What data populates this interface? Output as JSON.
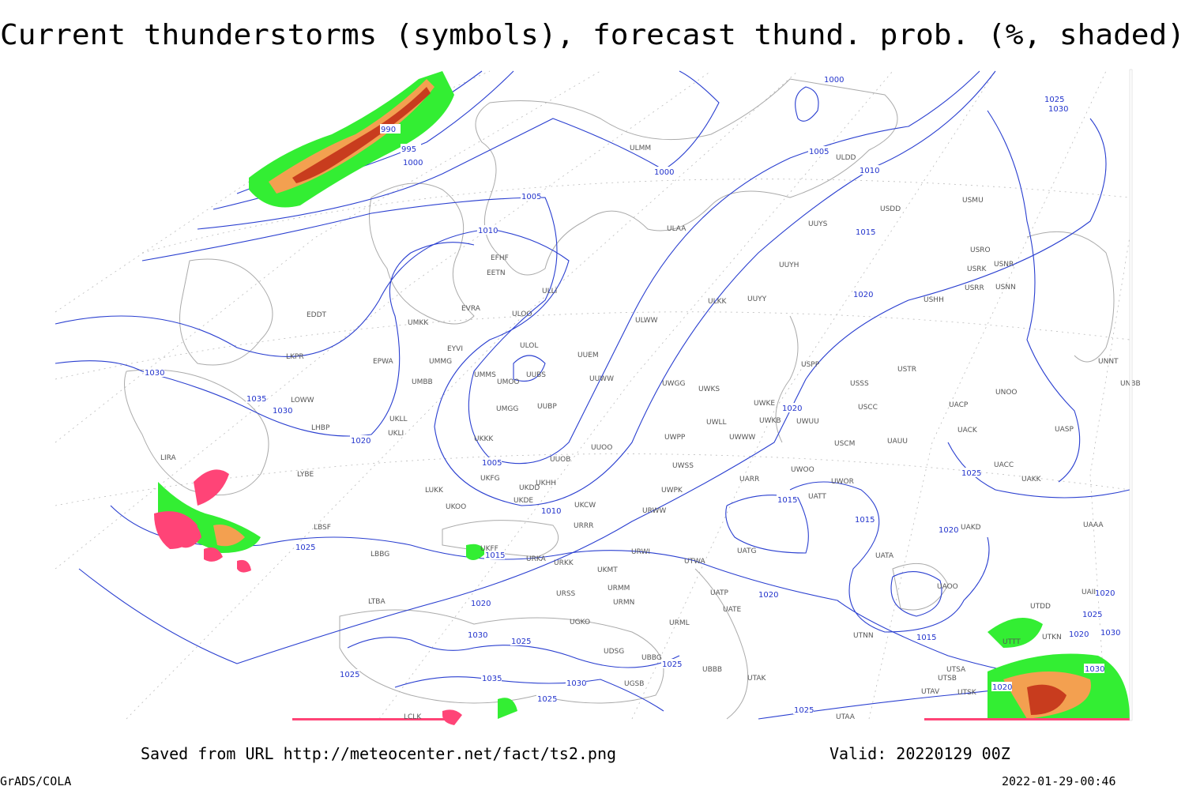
{
  "title": "Current thunderstorms (symbols), forecast thund. prob. (%, shaded)",
  "footer": {
    "saved": "Saved from URL http://meteocenter.net/fact/ts2.png",
    "valid": "Valid: 20220129 00Z",
    "software": "GrADS/COLA",
    "timestamp": "2022-01-29-00:46"
  },
  "isobar_labels": [
    990,
    995,
    1000,
    1005,
    1010,
    1000,
    1000,
    1005,
    1010,
    1015,
    1020,
    1025,
    1030,
    1030,
    1035,
    1030,
    1020,
    1005,
    1010,
    1015,
    1020,
    1025,
    1020,
    1015,
    1015,
    1025,
    1020,
    1020,
    1030,
    1025,
    1025,
    1025,
    1035,
    1030,
    1025,
    1015,
    1020,
    1025,
    1030,
    1020,
    1025,
    1020,
    1030
  ],
  "stations": [
    "ULMM",
    "ULDD",
    "USDD",
    "USMU",
    "UUYS",
    "ULAA",
    "UUYH",
    "USRO",
    "USRK",
    "USNR",
    "USRR",
    "USNN",
    "USHH",
    "ULKK",
    "UUYY",
    "EFHF",
    "EETN",
    "ULLI",
    "EVRA",
    "ULOO",
    "ULWW",
    "EDDT",
    "UMKK",
    "EYVI",
    "ULOL",
    "UUEM",
    "EPWA",
    "UMMG",
    "LKPR",
    "UMMS",
    "UUBS",
    "UUWW",
    "UMOO",
    "UMBB",
    "UWGG",
    "UWKS",
    "USPP",
    "USSS",
    "USTR",
    "UNNT",
    "UNBB",
    "LOWW",
    "UMGG",
    "UUBP",
    "UWKE",
    "UWKB",
    "UWUU",
    "USCC",
    "UACP",
    "UNOO",
    "UKLL",
    "LHBP",
    "UKLI",
    "UKKK",
    "UWLL",
    "UWPP",
    "UWWW",
    "USCM",
    "UAUU",
    "UACK",
    "UASP",
    "UUOO",
    "LIRA",
    "UUOB",
    "LYBE",
    "UWSS",
    "UARR",
    "UWOO",
    "UWOR",
    "UACC",
    "UAKK",
    "UKHH",
    "UKFG",
    "UKDD",
    "LUKK",
    "UWPK",
    "UATT",
    "UKDE",
    "UKOO",
    "UKCW",
    "URWW",
    "LBSF",
    "URRR",
    "UAKD",
    "UAAA",
    "UKFF",
    "LBBG",
    "URKA",
    "UATG",
    "UATA",
    "URKK",
    "URWI",
    "UTWA",
    "UKMT",
    "UAOO",
    "URSS",
    "URMM",
    "UATP",
    "UAII",
    "URMN",
    "LTBA",
    "UATE",
    "UTDD",
    "UGKO",
    "URML",
    "UDSG",
    "UBBG",
    "UTNN",
    "UTKN",
    "UTTT",
    "UBBB",
    "UTSA",
    "UTSB",
    "UTAK",
    "UGSB",
    "UTAV",
    "UTSK",
    "UTAA",
    "LCLK"
  ]
}
